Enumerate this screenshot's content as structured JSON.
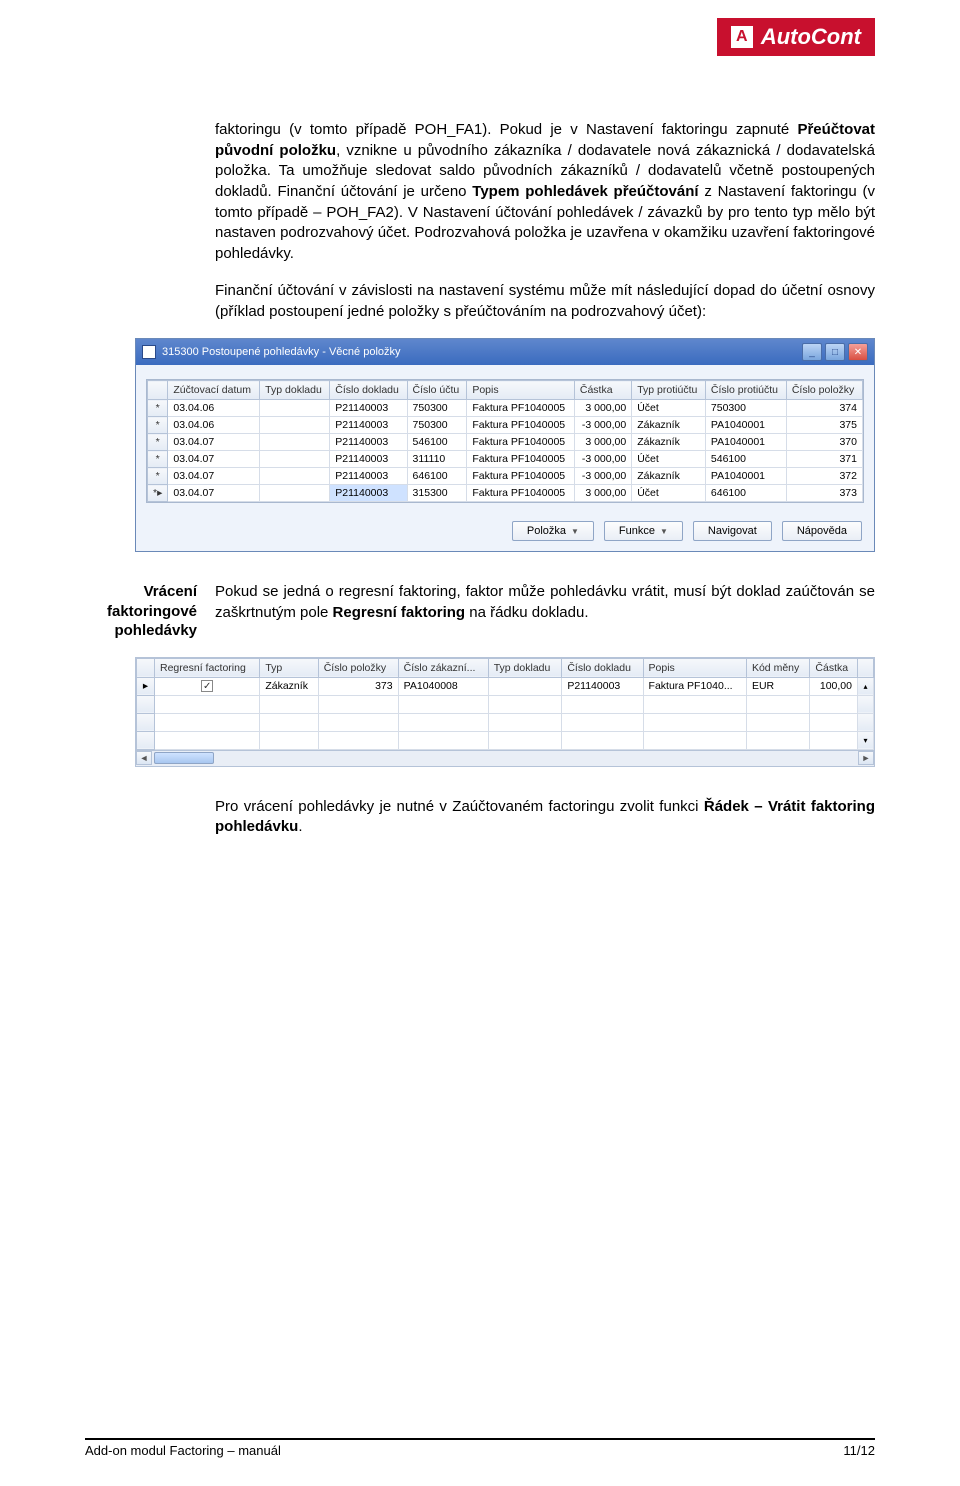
{
  "logo": {
    "text": "AutoCont",
    "icon_glyph": "A"
  },
  "para1_pre": "faktoringu (v tomto případě POH_FA1). Pokud je v Nastavení faktoringu zapnuté ",
  "para1_b1": "Přeúčtovat původní položku",
  "para1_mid": ", vznikne u původního zákazníka / dodavatele nová zákaznická / dodavatelská položka. Ta umožňuje sledovat saldo původních zákazníků / dodavatelů včetně postoupených dokladů. Finanční účtování je určeno ",
  "para1_b2": "Typem pohledávek přeúčtování",
  "para1_end": " z Nastavení faktoringu (v tomto případě – POH_FA2). V Nastavení účtování pohledávek / závazků by pro tento typ mělo být nastaven podrozvahový účet. Podrozvahová položka je uzavřena v okamžiku uzavření faktoringové pohledávky.",
  "para2": "Finanční účtování v závislosti na nastavení systému může mít následující dopad do účetní osnovy (příklad postoupení jedné položky s přeúčtováním na podrozvahový účet):",
  "window1": {
    "title": "315300  Postoupené pohledávky - Věcné položky",
    "columns": [
      "",
      "Zúčtovací datum",
      "Typ dokladu",
      "Číslo dokladu",
      "Číslo účtu",
      "Popis",
      "Částka",
      "Typ protiúčtu",
      "Číslo protiúčtu",
      "Číslo položky"
    ],
    "rows": [
      {
        "mark": "*",
        "date": "03.04.06",
        "dtype": "",
        "doc": "P21140003",
        "acct": "750300",
        "desc": "Faktura PF1040005",
        "amt": "3 000,00",
        "ctype": "Účet",
        "cacct": "750300",
        "item": "374"
      },
      {
        "mark": "*",
        "date": "03.04.06",
        "dtype": "",
        "doc": "P21140003",
        "acct": "750300",
        "desc": "Faktura PF1040005",
        "amt": "-3 000,00",
        "ctype": "Zákazník",
        "cacct": "PA1040001",
        "item": "375"
      },
      {
        "mark": "*",
        "date": "03.04.07",
        "dtype": "",
        "doc": "P21140003",
        "acct": "546100",
        "desc": "Faktura PF1040005",
        "amt": "3 000,00",
        "ctype": "Zákazník",
        "cacct": "PA1040001",
        "item": "370"
      },
      {
        "mark": "*",
        "date": "03.04.07",
        "dtype": "",
        "doc": "P21140003",
        "acct": "311110",
        "desc": "Faktura PF1040005",
        "amt": "-3 000,00",
        "ctype": "Účet",
        "cacct": "546100",
        "item": "371"
      },
      {
        "mark": "*",
        "date": "03.04.07",
        "dtype": "",
        "doc": "P21140003",
        "acct": "646100",
        "desc": "Faktura PF1040005",
        "amt": "-3 000,00",
        "ctype": "Zákazník",
        "cacct": "PA1040001",
        "item": "372"
      },
      {
        "mark": "*▸",
        "date": "03.04.07",
        "dtype": "",
        "doc": "P21140003",
        "acct": "315300",
        "desc": "Faktura PF1040005",
        "amt": "3 000,00",
        "ctype": "Účet",
        "cacct": "646100",
        "item": "373",
        "selected": true
      }
    ],
    "buttons": [
      "Položka",
      "Funkce",
      "Navigovat",
      "Nápověda"
    ]
  },
  "section2": {
    "label": "Vrácení faktoringové pohledávky",
    "text_pre": "Pokud se jedná o regresní faktoring, faktor může pohledávku vrátit, musí být doklad zaúčtován se zaškrtnutým pole ",
    "text_b": "Regresní faktoring",
    "text_post": " na řádku dokladu."
  },
  "window2": {
    "columns": [
      "",
      "Regresní factoring",
      "Typ",
      "Číslo položky",
      "Číslo zákazní...",
      "Typ dokladu",
      "Číslo dokladu",
      "Popis",
      "Kód měny",
      "Částka",
      ""
    ],
    "row": {
      "mark": "▸",
      "chk": true,
      "typ": "Zákazník",
      "item": "373",
      "cust": "PA1040008",
      "dtype": "",
      "doc": "P21140003",
      "desc": "Faktura PF1040...",
      "curr": "EUR",
      "amt": "100,00"
    }
  },
  "para3_pre": "Pro vrácení pohledávky je nutné v Zaúčtovaném factoringu zvolit funkci ",
  "para3_b": "Řádek – Vrátit faktoring pohledávku",
  "para3_post": ".",
  "footer": {
    "left": "Add-on modul Factoring – manuál",
    "right": "11/12"
  }
}
